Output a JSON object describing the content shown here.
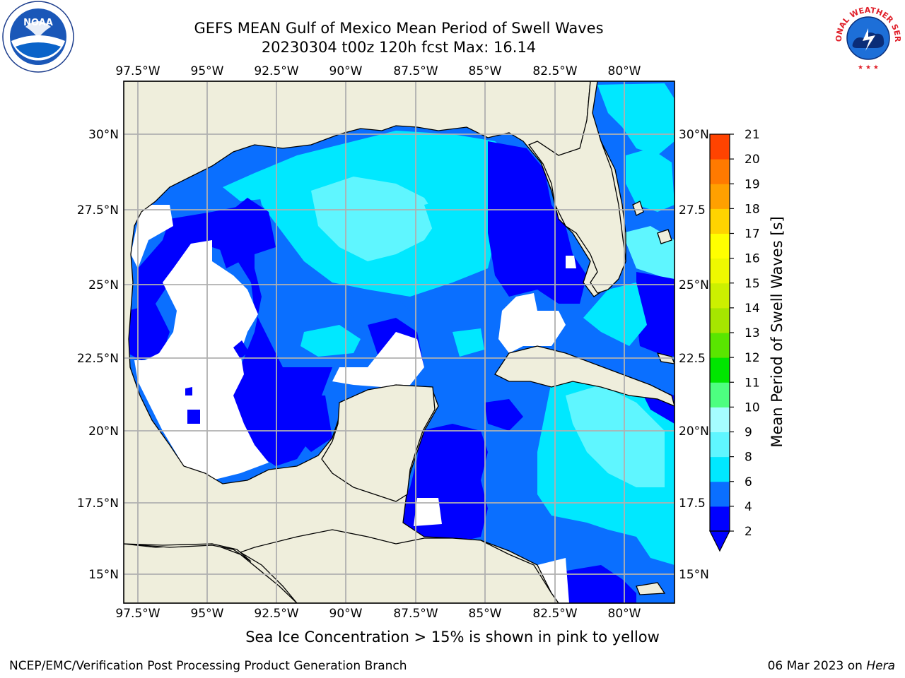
{
  "header": {
    "title_line1": "GEFS MEAN Gulf of Mexico Mean Period of Swell Waves",
    "title_line2": "20230304 t00z 120h fcst   Max: 16.14"
  },
  "logos": {
    "left": "noaa-logo",
    "right": "national-weather-service-logo",
    "right_text": "NATIONAL WEATHER SERVICE"
  },
  "map": {
    "lon_labels": [
      "97.5°W",
      "95°W",
      "92.5°W",
      "90°W",
      "87.5°W",
      "85°W",
      "82.5°W",
      "80°W"
    ],
    "lat_labels_left": [
      "30°N",
      "27.5°N",
      "25°N",
      "22.5°N",
      "20°N",
      "17.5°N",
      "15°N"
    ],
    "lat_labels_right": [
      "30°N",
      "27.5",
      "25°N",
      "22.5",
      "20°N",
      "17.5",
      "15°N"
    ],
    "land_color": "#efeedc",
    "grid_color": "#b0b0b0"
  },
  "colorbar": {
    "label": "Mean Period of Swell Waves [s]",
    "ticks": [
      "2",
      "4",
      "6",
      "8",
      "9",
      "10",
      "11",
      "12",
      "13",
      "14",
      "15",
      "16",
      "17",
      "18",
      "19",
      "20",
      "21"
    ],
    "colors": [
      "#0000ff",
      "#0a6fff",
      "#00e8ff",
      "#5ff6ff",
      "#a5fdff",
      "#4dff80",
      "#00e600",
      "#59e600",
      "#a6e600",
      "#ccf000",
      "#eef800",
      "#ffff00",
      "#ffd300",
      "#ffa000",
      "#ff7a00",
      "#ff4300",
      "#ff1a00",
      "#ff0000"
    ]
  },
  "footer": {
    "note": "Sea Ice Concentration > 15% is shown in pink to yellow",
    "credit_left": "NCEP/EMC/Verification Post Processing Product Generation Branch",
    "credit_right_date": "06 Mar 2023 on ",
    "credit_right_machine": "Hera"
  }
}
